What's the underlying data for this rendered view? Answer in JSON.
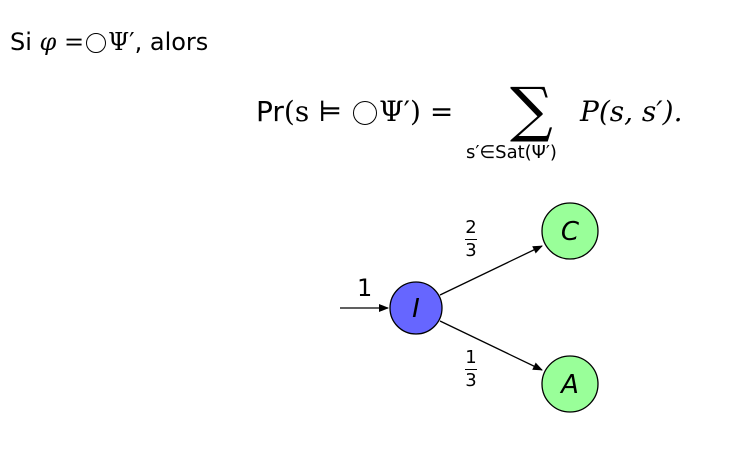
{
  "statement": {
    "prefix": "Si",
    "phi": "φ",
    "equals": "=",
    "psi_prime": "Ψ′",
    "suffix": ", alors"
  },
  "formula": {
    "pr": "Pr",
    "lhs_open": "(s ⊨ ",
    "lhs_close": "Ψ′) =",
    "sum_symbol": "∑",
    "sum_subscript": "s′∈Sat(Ψ′)",
    "rhs": "P(s, s′)."
  },
  "diagram": {
    "initial_probability": "1",
    "edges": [
      {
        "from": "I",
        "to": "C",
        "numerator": "2",
        "denominator": "3"
      },
      {
        "from": "I",
        "to": "A",
        "numerator": "1",
        "denominator": "3"
      }
    ],
    "states": [
      {
        "id": "I",
        "label": "I",
        "color": "#6666ff"
      },
      {
        "id": "C",
        "label": "C",
        "color": "#99ff99"
      },
      {
        "id": "A",
        "label": "A",
        "color": "#99ff99"
      }
    ]
  }
}
